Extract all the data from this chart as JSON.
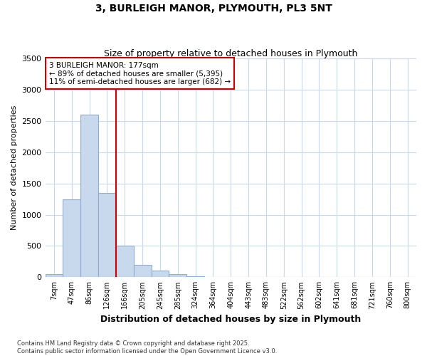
{
  "title1": "3, BURLEIGH MANOR, PLYMOUTH, PL3 5NT",
  "title2": "Size of property relative to detached houses in Plymouth",
  "xlabel": "Distribution of detached houses by size in Plymouth",
  "ylabel": "Number of detached properties",
  "categories": [
    "7sqm",
    "47sqm",
    "86sqm",
    "126sqm",
    "166sqm",
    "205sqm",
    "245sqm",
    "285sqm",
    "324sqm",
    "364sqm",
    "404sqm",
    "443sqm",
    "483sqm",
    "522sqm",
    "562sqm",
    "602sqm",
    "641sqm",
    "681sqm",
    "721sqm",
    "760sqm",
    "800sqm"
  ],
  "values": [
    50,
    1250,
    2600,
    1350,
    500,
    200,
    110,
    50,
    20,
    5,
    2,
    1,
    0,
    0,
    0,
    0,
    0,
    0,
    0,
    0,
    0
  ],
  "bar_color": "#c8d8ed",
  "bar_edge_color": "#90aed0",
  "grid_color": "#c8d8ed",
  "background_color": "#ffffff",
  "red_line_index": 4,
  "annotation_text": "3 BURLEIGH MANOR: 177sqm\n← 89% of detached houses are smaller (5,395)\n11% of semi-detached houses are larger (682) →",
  "annotation_box_color": "#ffffff",
  "annotation_border_color": "#cc0000",
  "red_line_color": "#cc0000",
  "ylim": [
    0,
    3500
  ],
  "yticks": [
    0,
    500,
    1000,
    1500,
    2000,
    2500,
    3000,
    3500
  ],
  "footer1": "Contains HM Land Registry data © Crown copyright and database right 2025.",
  "footer2": "Contains public sector information licensed under the Open Government Licence v3.0."
}
